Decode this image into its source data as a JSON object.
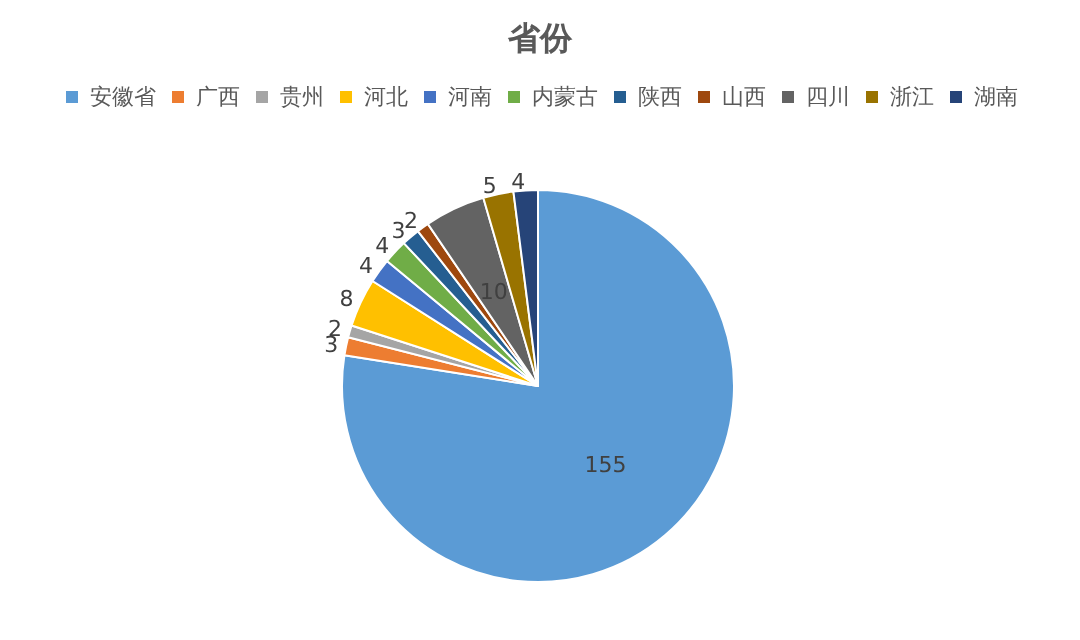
{
  "chart_data": {
    "type": "pie",
    "title": "省份",
    "categories": [
      "安徽省",
      "广西",
      "贵州",
      "河北",
      "河南",
      "内蒙古",
      "陕西",
      "山西",
      "四川",
      "浙江",
      "湖南"
    ],
    "values": [
      155,
      3,
      2,
      8,
      4,
      4,
      3,
      2,
      10,
      5,
      4
    ],
    "colors": [
      "#5b9bd5",
      "#ed7d31",
      "#a5a5a5",
      "#ffc000",
      "#4472c4",
      "#70ad47",
      "#255e91",
      "#9e480e",
      "#636363",
      "#997300",
      "#264478"
    ],
    "data_labels": true,
    "legend": "top"
  }
}
